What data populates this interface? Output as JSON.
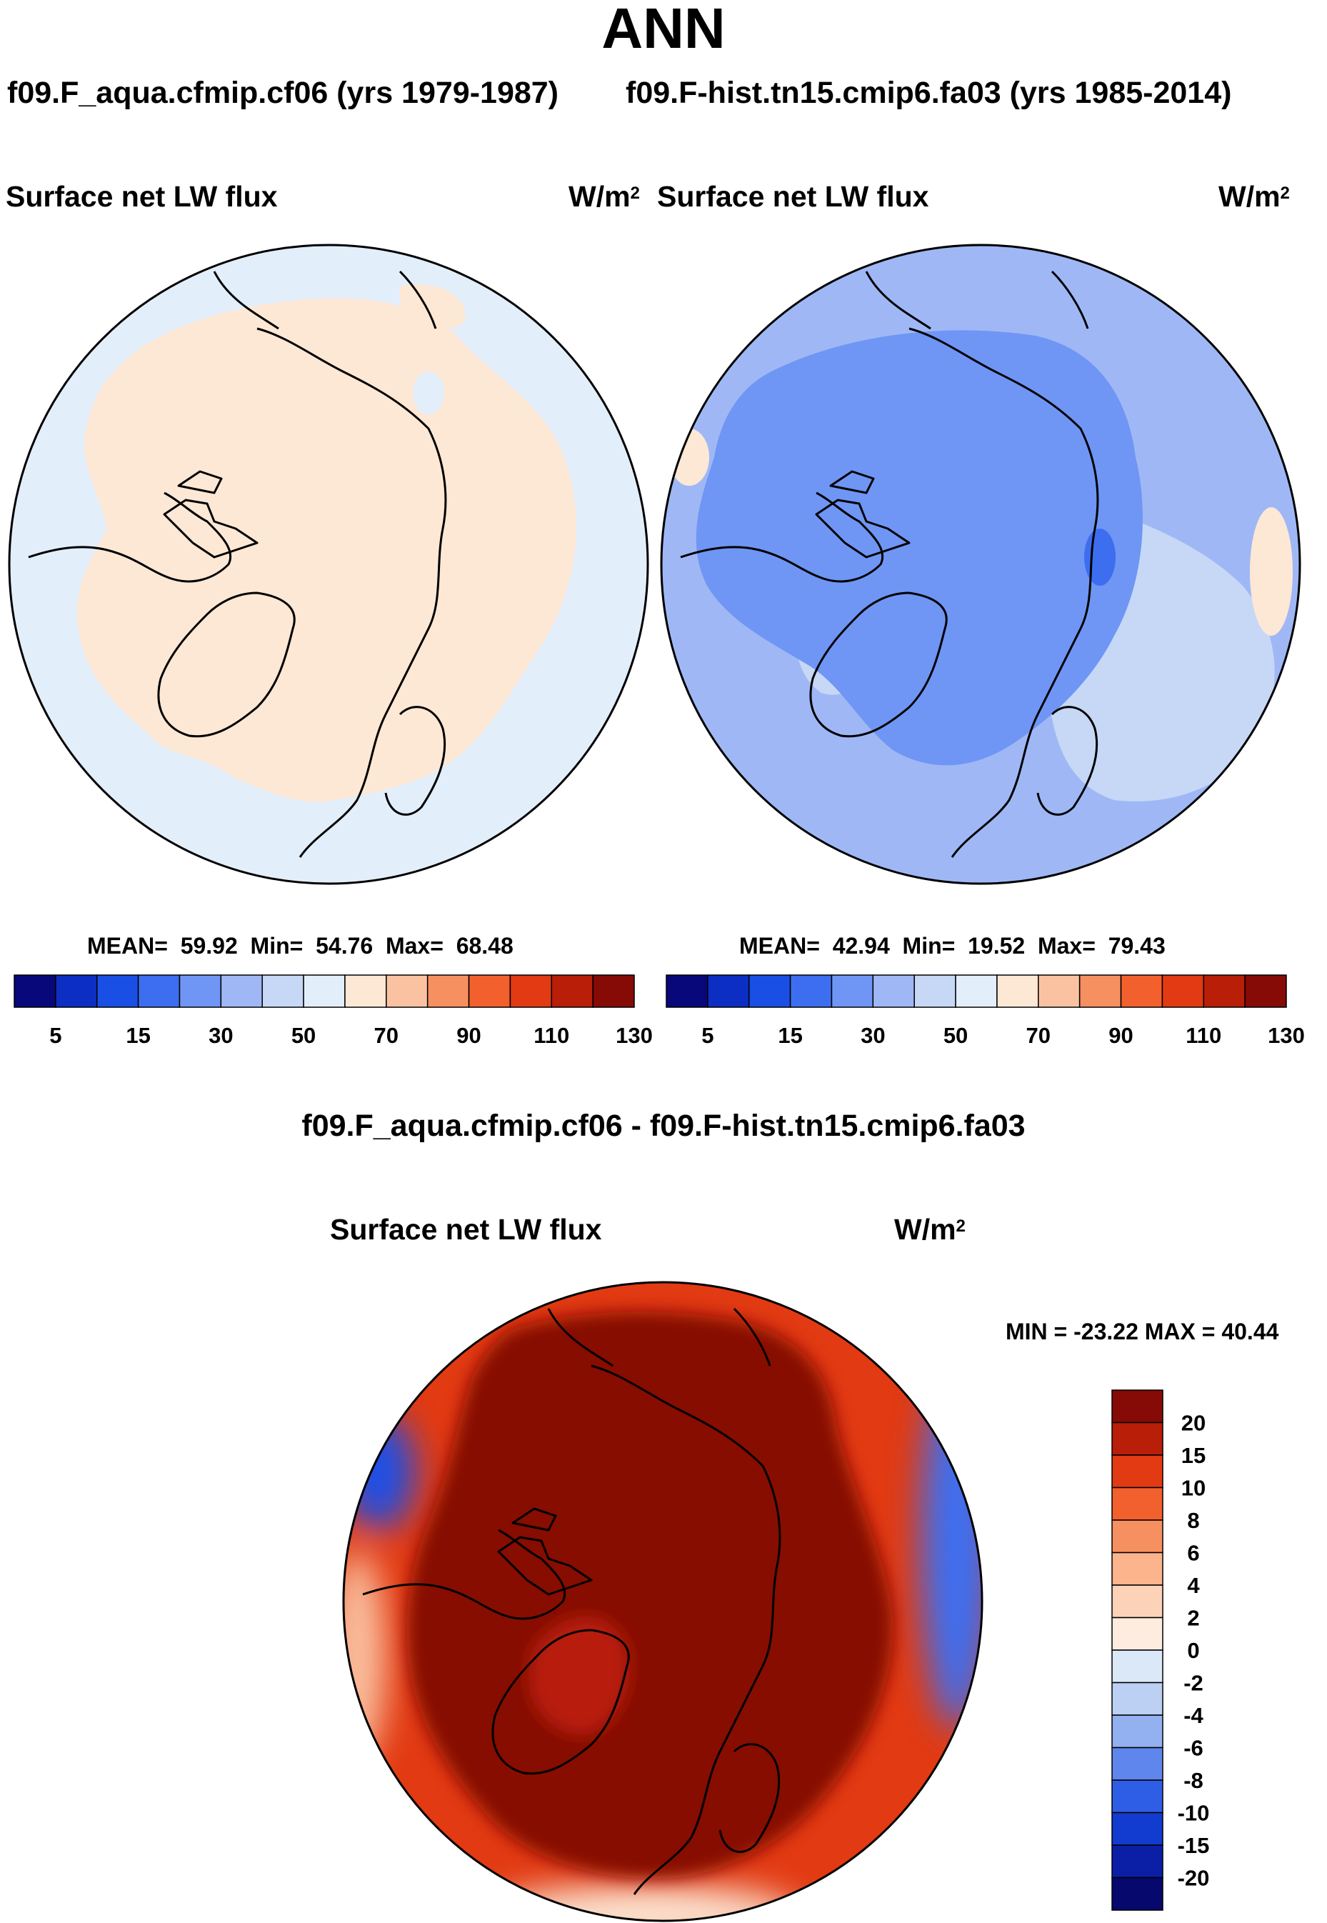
{
  "page": {
    "title": "ANN"
  },
  "panels": {
    "case1": {
      "case_title": "f09.F_aqua.cfmip.cf06 (yrs 1979-1987)",
      "variable": "Surface net LW flux",
      "units_base": "W/m",
      "units_exp": "2",
      "stats": {
        "mean": "59.92",
        "min": "54.76",
        "max": "68.48"
      },
      "mean_label": "MEAN=",
      "min_label": "Min=",
      "max_label": "Max="
    },
    "case2": {
      "case_title": "f09.F-hist.tn15.cmip6.fa03 (yrs 1985-2014)",
      "variable": "Surface net LW flux",
      "units_base": "W/m",
      "units_exp": "2",
      "stats": {
        "mean": "42.94",
        "min": "19.52",
        "max": "79.43"
      },
      "mean_label": "MEAN=",
      "min_label": "Min=",
      "max_label": "Max="
    },
    "diff": {
      "title": "f09.F_aqua.cfmip.cf06 - f09.F-hist.tn15.cmip6.fa03",
      "variable": "Surface net LW flux",
      "units_base": "W/m",
      "units_exp": "2",
      "minmax_text": "MIN = -23.22 MAX =  40.44"
    }
  },
  "chart_data": [
    {
      "type": "heatmap",
      "projection": "north polar stereographic",
      "title": "Surface net LW flux",
      "case": "f09.F_aqua.cfmip.cf06 (yrs 1979-1987)",
      "units": "W/m2",
      "colorbar": {
        "orientation": "horizontal",
        "tick_labels": [
          "5",
          "15",
          "30",
          "50",
          "70",
          "90",
          "110",
          "130"
        ],
        "tick_positions_bin_edges": [
          1,
          3,
          5,
          7,
          9,
          11,
          13,
          15
        ],
        "colors": [
          "#08087a",
          "#0c2ec2",
          "#1a4fe6",
          "#3d6ef0",
          "#6f96f4",
          "#9fb8f5",
          "#c6d8f6",
          "#e3eefb",
          "#fde8d6",
          "#fbc2a2",
          "#f79061",
          "#f2602e",
          "#e23a12",
          "#b81e08",
          "#860a05"
        ]
      },
      "stats": {
        "mean": 59.92,
        "min": 54.76,
        "max": 68.48
      }
    },
    {
      "type": "heatmap",
      "projection": "north polar stereographic",
      "title": "Surface net LW flux",
      "case": "f09.F-hist.tn15.cmip6.fa03 (yrs 1985-2014)",
      "units": "W/m2",
      "colorbar": {
        "orientation": "horizontal",
        "tick_labels": [
          "5",
          "15",
          "30",
          "50",
          "70",
          "90",
          "110",
          "130"
        ],
        "tick_positions_bin_edges": [
          1,
          3,
          5,
          7,
          9,
          11,
          13,
          15
        ],
        "colors": [
          "#08087a",
          "#0c2ec2",
          "#1a4fe6",
          "#3d6ef0",
          "#6f96f4",
          "#9fb8f5",
          "#c6d8f6",
          "#e3eefb",
          "#fde8d6",
          "#fbc2a2",
          "#f79061",
          "#f2602e",
          "#e23a12",
          "#b81e08",
          "#860a05"
        ]
      },
      "stats": {
        "mean": 42.94,
        "min": 19.52,
        "max": 79.43
      }
    },
    {
      "type": "heatmap",
      "projection": "north polar stereographic",
      "title": "f09.F_aqua.cfmip.cf06 - f09.F-hist.tn15.cmip6.fa03",
      "subtitle": "Surface net LW flux",
      "units": "W/m2",
      "colorbar": {
        "orientation": "vertical",
        "tick_labels": [
          "20",
          "15",
          "10",
          "8",
          "6",
          "4",
          "2",
          "0",
          "-2",
          "-4",
          "-6",
          "-8",
          "-10",
          "-15",
          "-20"
        ],
        "colors": [
          "#860a05",
          "#b81e08",
          "#e23a12",
          "#f2602e",
          "#f79061",
          "#fbb48c",
          "#fcd3b8",
          "#fdecdf",
          "#dbe8f8",
          "#bcd0f4",
          "#93b0f1",
          "#5f86ec",
          "#2f5ee6",
          "#123bd0",
          "#0a1fa6",
          "#06086e"
        ]
      },
      "stats": {
        "min": -23.22,
        "max": 40.44
      }
    }
  ]
}
